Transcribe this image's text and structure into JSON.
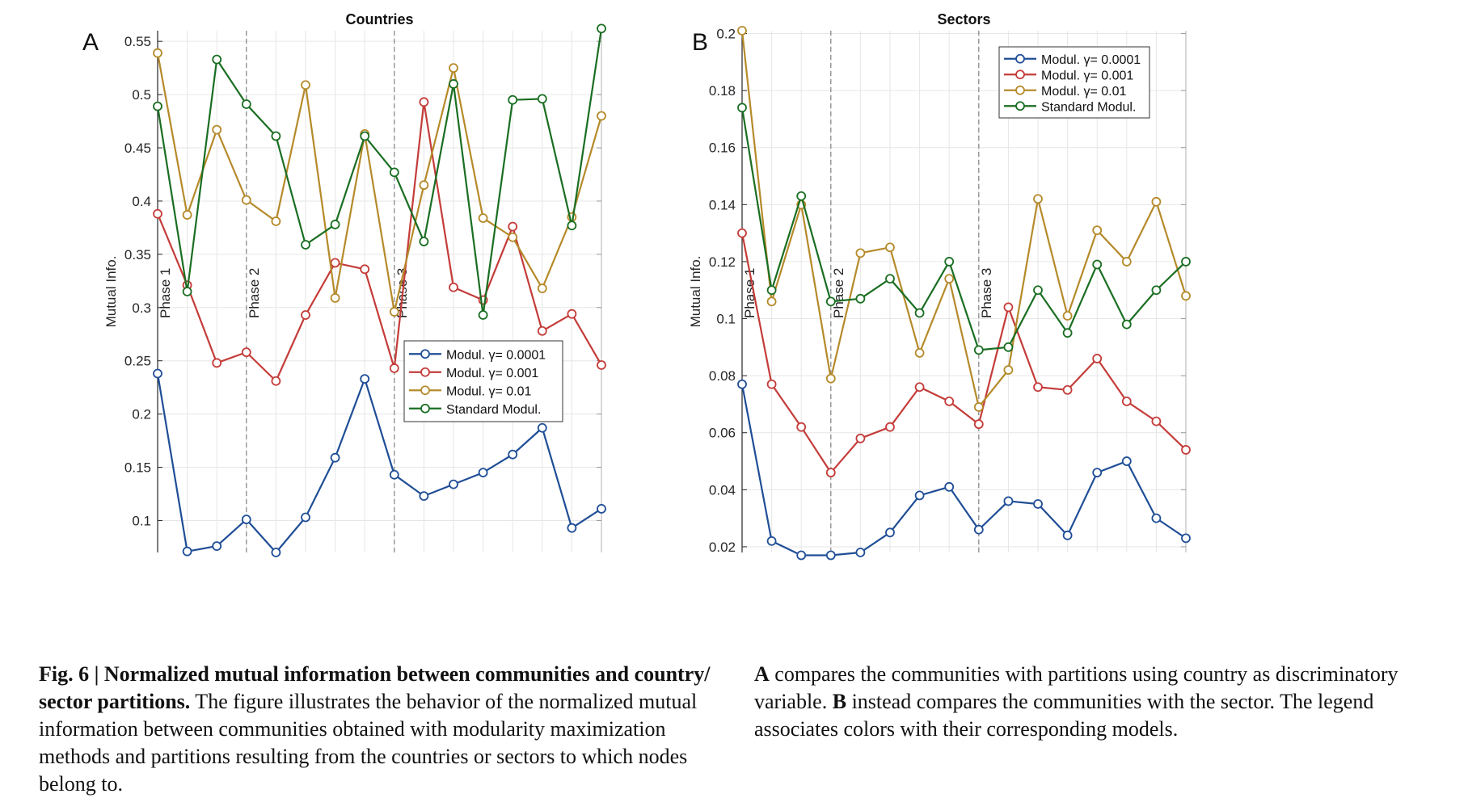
{
  "colors": {
    "modul_00001": "#1f4e96",
    "modul_0001": "#c43c39",
    "modul_001": "#b58a2a",
    "standard": "#1a6e22",
    "grid": "#e6e6e6",
    "axis": "#262626",
    "phase_line": "#8a8a8a"
  },
  "chart_data": [
    {
      "panel_label": "A",
      "type": "line",
      "title": "Countries",
      "ylabel": "Mutual Info.",
      "xlabel": "",
      "ylim": [
        0.07,
        0.56
      ],
      "yticks": [
        0.1,
        0.15,
        0.2,
        0.25,
        0.3,
        0.35,
        0.4,
        0.45,
        0.5,
        0.55
      ],
      "ytick_labels": [
        "0.1",
        "0.15",
        "0.2",
        "0.25",
        "0.3",
        "0.35",
        "0.4",
        "0.45",
        "0.5",
        "0.55"
      ],
      "x": [
        1,
        2,
        3,
        4,
        5,
        6,
        7,
        8,
        9,
        10,
        11,
        12,
        13,
        14,
        15,
        16
      ],
      "xlim": [
        1,
        16
      ],
      "grid": true,
      "legend_position": "bottom-right",
      "phases": [
        {
          "label": "Phase 1",
          "x": 1
        },
        {
          "label": "Phase 2",
          "x": 4
        },
        {
          "label": "Phase 3",
          "x": 9
        }
      ],
      "series": [
        {
          "name": "Modul. γ= 0.0001",
          "color_key": "modul_00001",
          "values": [
            0.238,
            0.071,
            0.076,
            0.101,
            0.07,
            0.103,
            0.159,
            0.233,
            0.143,
            0.123,
            0.134,
            0.145,
            0.162,
            0.187,
            0.093,
            0.111
          ]
        },
        {
          "name": "Modul. γ= 0.001",
          "color_key": "modul_0001",
          "values": [
            0.388,
            0.321,
            0.248,
            0.258,
            0.231,
            0.293,
            0.342,
            0.336,
            0.243,
            0.493,
            0.319,
            0.307,
            0.376,
            0.278,
            0.294,
            0.246
          ]
        },
        {
          "name": "Modul. γ= 0.01",
          "color_key": "modul_001",
          "values": [
            0.539,
            0.387,
            0.467,
            0.401,
            0.381,
            0.509,
            0.309,
            0.463,
            0.296,
            0.415,
            0.525,
            0.384,
            0.366,
            0.318,
            0.385,
            0.48
          ]
        },
        {
          "name": "Standard Modul.",
          "color_key": "standard",
          "values": [
            0.489,
            0.315,
            0.533,
            0.491,
            0.461,
            0.359,
            0.378,
            0.461,
            0.427,
            0.362,
            0.51,
            0.293,
            0.495,
            0.496,
            0.377,
            0.562
          ]
        }
      ]
    },
    {
      "panel_label": "B",
      "type": "line",
      "title": "Sectors",
      "ylabel": "Mutual Info.",
      "xlabel": "",
      "ylim": [
        0.018,
        0.201
      ],
      "yticks": [
        0.02,
        0.04,
        0.06,
        0.08,
        0.1,
        0.12,
        0.14,
        0.16,
        0.18,
        0.2
      ],
      "ytick_labels": [
        "0.02",
        "0.04",
        "0.06",
        "0.08",
        "0.1",
        "0.12",
        "0.14",
        "0.16",
        "0.18",
        "0.2"
      ],
      "x": [
        1,
        2,
        3,
        4,
        5,
        6,
        7,
        8,
        9,
        10,
        11,
        12,
        13,
        14,
        15,
        16
      ],
      "xlim": [
        1,
        16
      ],
      "grid": true,
      "legend_position": "top-right",
      "phases": [
        {
          "label": "Phase 1",
          "x": 1
        },
        {
          "label": "Phase 2",
          "x": 4
        },
        {
          "label": "Phase 3",
          "x": 9
        }
      ],
      "series": [
        {
          "name": "Modul. γ= 0.0001",
          "color_key": "modul_00001",
          "values": [
            0.077,
            0.022,
            0.017,
            0.017,
            0.018,
            0.025,
            0.038,
            0.041,
            0.026,
            0.036,
            0.035,
            0.024,
            0.046,
            0.05,
            0.03,
            0.023
          ]
        },
        {
          "name": "Modul. γ= 0.001",
          "color_key": "modul_0001",
          "values": [
            0.13,
            0.077,
            0.062,
            0.046,
            0.058,
            0.062,
            0.076,
            0.071,
            0.063,
            0.104,
            0.076,
            0.075,
            0.086,
            0.071,
            0.064,
            0.054
          ]
        },
        {
          "name": "Modul. γ= 0.01",
          "color_key": "modul_001",
          "values": [
            0.201,
            0.106,
            0.14,
            0.079,
            0.123,
            0.125,
            0.088,
            0.114,
            0.069,
            0.082,
            0.142,
            0.101,
            0.131,
            0.12,
            0.141,
            0.108
          ]
        },
        {
          "name": "Standard Modul.",
          "color_key": "standard",
          "values": [
            0.174,
            0.11,
            0.143,
            0.106,
            0.107,
            0.114,
            0.102,
            0.12,
            0.089,
            0.09,
            0.11,
            0.095,
            0.119,
            0.098,
            0.11,
            0.12
          ]
        }
      ]
    }
  ],
  "caption": {
    "left_bold": "Fig. 6 | Normalized mutual information between communities and country/ sector partitions.",
    "left_text": " The figure illustrates the behavior of the normalized mutual information between communities obtained with modularity maximization methods and partitions resulting from the countries or sectors to which nodes belong to.",
    "right_a": "A",
    "right_a_text": " compares the communities with partitions using country as discriminatory variable. ",
    "right_b": "B",
    "right_b_text": " instead compares the communities with the sector. The legend associates colors with their corresponding models."
  }
}
